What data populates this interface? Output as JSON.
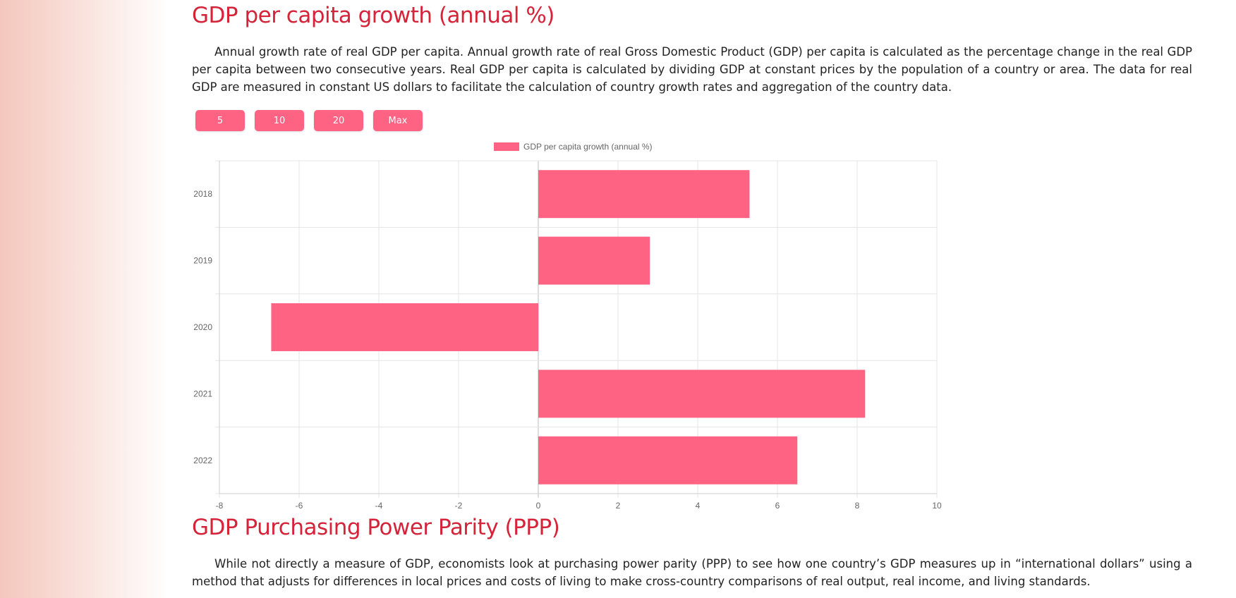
{
  "section1": {
    "title": "GDP per capita growth (annual %)",
    "description": "Annual growth rate of real GDP per capita. Annual growth rate of real Gross Domestic Product (GDP) per capita is calculated as the percentage change in the real GDP per capita between two consecutive years. Real GDP per capita is calculated by dividing GDP at constant prices by the population of a country or area. The data for real GDP are measured in constant US dollars to facilitate the calculation of country growth rates and aggregation of the country data.",
    "range_buttons": [
      "5",
      "10",
      "20",
      "Max"
    ]
  },
  "section2": {
    "title": "GDP Purchasing Power Parity (PPP)",
    "description": "While not directly a measure of GDP, economists look at purchasing power parity (PPP) to see how one country’s GDP measures up in “international dollars” using a method that adjusts for differences in local prices and costs of living to make cross-country comparisons of real output, real income, and living standards."
  },
  "colors": {
    "heading": "#d52339",
    "bar": "#ff6384",
    "background_gradient": "#f4c7bd"
  },
  "chart_data": {
    "type": "bar",
    "orientation": "horizontal",
    "categories": [
      "2018",
      "2019",
      "2020",
      "2021",
      "2022"
    ],
    "series": [
      {
        "name": "GDP per capita growth (annual %)",
        "values": [
          5.3,
          2.8,
          -6.7,
          8.2,
          6.5
        ]
      }
    ],
    "xlim": [
      -8,
      10
    ],
    "xticks": [
      -8,
      -6,
      -4,
      -2,
      0,
      2,
      4,
      6,
      8,
      10
    ],
    "grid": true,
    "legend": "top"
  }
}
